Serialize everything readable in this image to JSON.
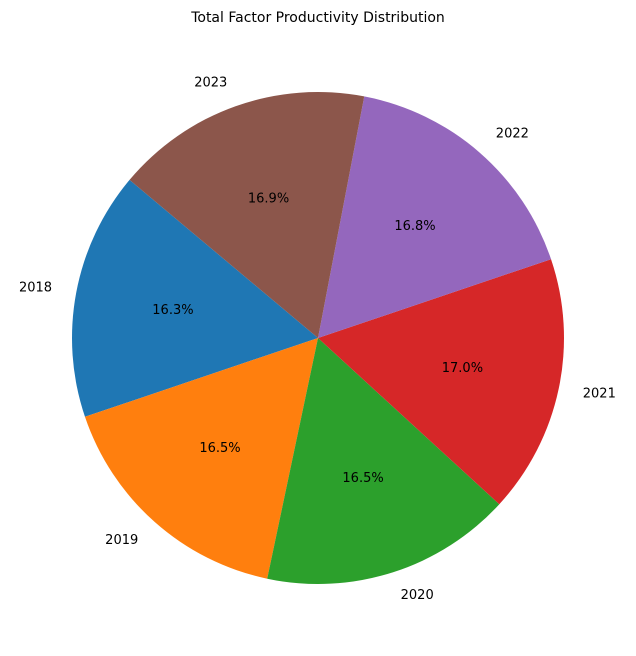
{
  "chart_data": {
    "type": "pie",
    "title": "Total Factor Productivity Distribution",
    "categories": [
      "2018",
      "2019",
      "2020",
      "2021",
      "2022",
      "2023"
    ],
    "values": [
      16.3,
      16.5,
      16.5,
      17.0,
      16.8,
      16.9
    ],
    "percent_labels": [
      "16.3%",
      "16.5%",
      "16.5%",
      "17.0%",
      "16.8%",
      "16.9%"
    ],
    "colors": [
      "#1f77b4",
      "#ff7f0e",
      "#2ca02c",
      "#d62728",
      "#9467bd",
      "#8c564b"
    ],
    "start_angle_deg": 140,
    "direction": "counterclockwise",
    "legend": "none"
  }
}
